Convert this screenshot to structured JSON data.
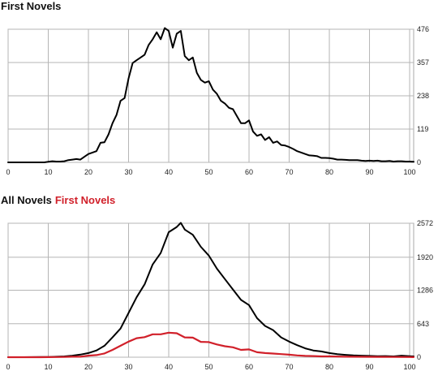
{
  "chart_data": [
    {
      "type": "line",
      "title": "First Novels",
      "xlim": [
        0,
        101
      ],
      "ylim": [
        0,
        476
      ],
      "xticks": [
        0,
        10,
        20,
        30,
        40,
        50,
        60,
        70,
        80,
        90,
        100
      ],
      "yticks": [
        0,
        119,
        238,
        357,
        476
      ],
      "ytick_position": "right",
      "grid": true,
      "series": [
        {
          "color": "#000000",
          "x": [
            0,
            1,
            2,
            3,
            4,
            5,
            6,
            7,
            8,
            9,
            10,
            11,
            12,
            13,
            14,
            15,
            16,
            17,
            18,
            19,
            20,
            21,
            22,
            23,
            24,
            25,
            26,
            27,
            28,
            29,
            30,
            31,
            32,
            33,
            34,
            35,
            36,
            37,
            38,
            39,
            40,
            41,
            42,
            43,
            44,
            45,
            46,
            47,
            48,
            49,
            50,
            51,
            52,
            53,
            54,
            55,
            56,
            57,
            58,
            59,
            60,
            61,
            62,
            63,
            64,
            65,
            66,
            67,
            68,
            69,
            70,
            71,
            72,
            73,
            74,
            75,
            76,
            77,
            78,
            79,
            80,
            81,
            82,
            83,
            84,
            85,
            86,
            87,
            88,
            89,
            90,
            91,
            92,
            93,
            94,
            95,
            96,
            97,
            98,
            99,
            100,
            101
          ],
          "values": [
            0,
            0,
            0,
            0,
            0,
            0,
            0,
            0,
            0,
            0,
            2,
            4,
            3,
            3,
            4,
            8,
            10,
            12,
            10,
            20,
            30,
            35,
            40,
            70,
            72,
            100,
            140,
            170,
            220,
            230,
            300,
            355,
            365,
            375,
            385,
            420,
            440,
            465,
            440,
            480,
            470,
            410,
            460,
            470,
            380,
            365,
            375,
            320,
            295,
            285,
            290,
            260,
            245,
            220,
            210,
            195,
            190,
            165,
            140,
            140,
            150,
            110,
            95,
            100,
            80,
            90,
            70,
            75,
            62,
            60,
            55,
            48,
            40,
            35,
            30,
            25,
            24,
            22,
            16,
            16,
            15,
            13,
            10,
            10,
            9,
            8,
            8,
            8,
            6,
            5,
            6,
            5,
            6,
            4,
            4,
            5,
            3,
            4,
            4,
            3,
            3,
            2
          ]
        }
      ]
    },
    {
      "type": "line",
      "title": "All Novels",
      "legend": [
        "All Novels",
        "First Novels"
      ],
      "xlim": [
        0,
        101
      ],
      "ylim": [
        0,
        2572
      ],
      "xticks": [
        0,
        10,
        20,
        30,
        40,
        50,
        60,
        70,
        80,
        90,
        100
      ],
      "yticks": [
        0,
        643,
        1286,
        1920,
        2572
      ],
      "ytick_position": "right",
      "grid": true,
      "series": [
        {
          "name": "All Novels",
          "color": "#000000",
          "x": [
            0,
            2,
            4,
            6,
            8,
            10,
            12,
            14,
            16,
            18,
            20,
            22,
            24,
            26,
            28,
            30,
            32,
            34,
            36,
            38,
            40,
            42,
            43,
            44,
            46,
            48,
            50,
            52,
            54,
            56,
            58,
            60,
            62,
            64,
            66,
            68,
            70,
            72,
            74,
            76,
            78,
            80,
            82,
            84,
            86,
            88,
            90,
            92,
            94,
            96,
            98,
            100,
            101
          ],
          "values": [
            0,
            0,
            0,
            2,
            3,
            5,
            10,
            15,
            30,
            50,
            80,
            130,
            220,
            380,
            550,
            850,
            1150,
            1400,
            1780,
            2000,
            2400,
            2500,
            2580,
            2450,
            2350,
            2120,
            1950,
            1700,
            1500,
            1300,
            1100,
            1000,
            750,
            600,
            520,
            380,
            300,
            230,
            170,
            130,
            110,
            80,
            60,
            45,
            35,
            30,
            25,
            20,
            22,
            15,
            30,
            20,
            15
          ]
        },
        {
          "name": "First Novels",
          "color": "#d1202a",
          "x": [
            0,
            2,
            4,
            6,
            8,
            10,
            12,
            14,
            16,
            18,
            20,
            22,
            24,
            26,
            28,
            30,
            32,
            34,
            36,
            38,
            40,
            42,
            44,
            46,
            48,
            50,
            52,
            54,
            56,
            58,
            60,
            62,
            64,
            66,
            68,
            70,
            72,
            74,
            76,
            78,
            80,
            84,
            88,
            92,
            96,
            100,
            101
          ],
          "values": [
            0,
            0,
            0,
            0,
            0,
            2,
            3,
            4,
            10,
            10,
            30,
            40,
            72,
            140,
            220,
            300,
            365,
            385,
            440,
            440,
            470,
            460,
            380,
            375,
            295,
            290,
            245,
            210,
            190,
            140,
            150,
            95,
            80,
            70,
            60,
            48,
            35,
            25,
            22,
            16,
            15,
            10,
            8,
            6,
            4,
            3,
            2
          ]
        }
      ]
    }
  ]
}
